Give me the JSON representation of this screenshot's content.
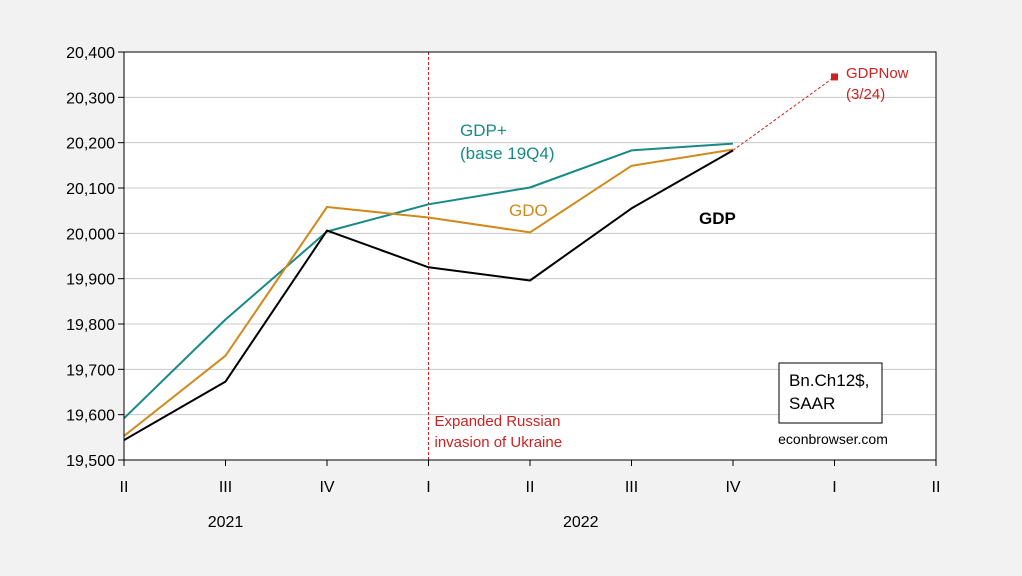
{
  "chart_data": {
    "type": "line",
    "x": [
      "II",
      "III",
      "IV",
      "I",
      "II",
      "III",
      "IV",
      "I",
      "II"
    ],
    "years": [
      {
        "label": "2021",
        "start_index": 0,
        "end_index": 2
      },
      {
        "label": "2022",
        "start_index": 3,
        "end_index": 6
      }
    ],
    "ylim": [
      19500,
      20400
    ],
    "yticks": [
      19500,
      19600,
      19700,
      19800,
      19900,
      20000,
      20100,
      20200,
      20300,
      20400
    ],
    "ytick_labels": [
      "19,500",
      "19,600",
      "19,700",
      "19,800",
      "19,900",
      "20,000",
      "20,100",
      "20,200",
      "20,300",
      "20,400"
    ],
    "grid": true,
    "series": [
      {
        "name": "GDP",
        "color": "#000000",
        "values": [
          19544,
          19673,
          20006,
          19925,
          19896,
          20055,
          20183,
          null,
          null
        ]
      },
      {
        "name": "GDO",
        "color": "#d08a1c",
        "values": [
          19553,
          19730,
          20058,
          20035,
          20002,
          20149,
          20185,
          null,
          null
        ]
      },
      {
        "name": "GDP+",
        "color": "#178a85",
        "values": [
          19592,
          19810,
          20004,
          20064,
          20101,
          20183,
          20198,
          null,
          null
        ]
      }
    ],
    "series_labels": [
      {
        "series": "GDP+",
        "lines": [
          "GDP+",
          "(base 19Q4)"
        ]
      },
      {
        "series": "GDO",
        "lines": [
          "GDO"
        ]
      },
      {
        "series": "GDP",
        "lines": [
          "GDP"
        ]
      }
    ],
    "nowcast": {
      "lines": [
        "GDPNow",
        "(3/24)"
      ],
      "color": "#cc2222",
      "from": {
        "x_index": 6,
        "value": 20183
      },
      "to": {
        "x_index": 7,
        "value": 20345
      }
    },
    "event": {
      "x_index": 3,
      "lines": [
        "Expanded Russian",
        "invasion of Ukraine"
      ],
      "color": "#cc2222"
    },
    "units_box": {
      "lines": [
        "Bn.Ch12$,",
        "SAAR"
      ]
    },
    "source": "econbrowser.com"
  }
}
